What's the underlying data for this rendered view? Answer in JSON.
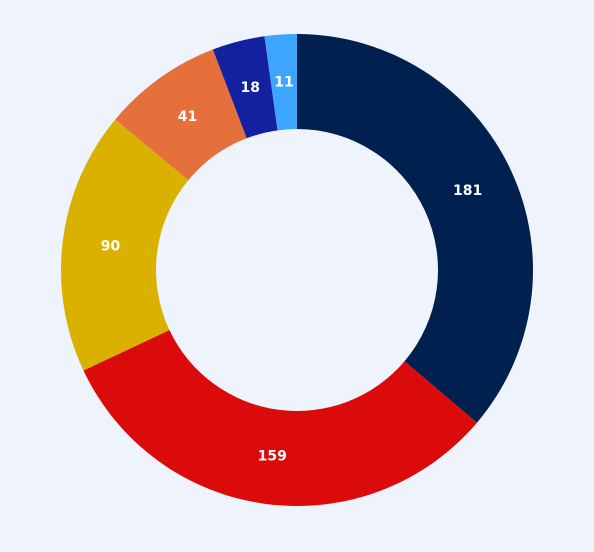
{
  "chart_data": {
    "type": "pie",
    "variant": "donut",
    "title": "",
    "legend": "none",
    "slices": [
      {
        "value": 181,
        "label": "181",
        "color": "#00204f"
      },
      {
        "value": 159,
        "label": "159",
        "color": "#db0b0b"
      },
      {
        "value": 90,
        "label": "90",
        "color": "#dbb100"
      },
      {
        "value": 41,
        "label": "41",
        "color": "#e6703c"
      },
      {
        "value": 18,
        "label": "18",
        "color": "#1320a0"
      },
      {
        "value": 11,
        "label": "11",
        "color": "#3da4ff"
      }
    ]
  },
  "background_color": "#eef3fc"
}
